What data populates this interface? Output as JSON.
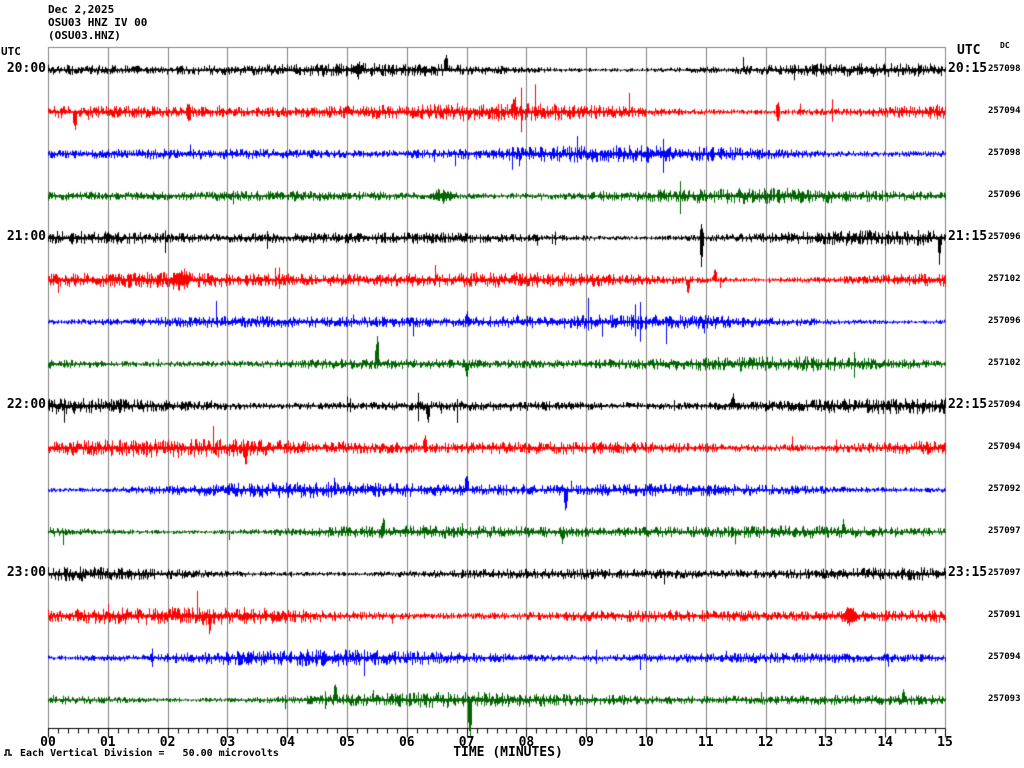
{
  "header": {
    "date": "Dec 2,2025",
    "station": "OSU03 HNZ IV 00",
    "channel": "(OSU03.HNZ)"
  },
  "axis": {
    "left_header": "UTC",
    "right_header": "UTC",
    "dc_header": "DC",
    "xlabel": "TIME (MINUTES)",
    "scale_note": "Each Vertical Division =   50.00 microvolts",
    "tick_labels": [
      "00",
      "01",
      "02",
      "03",
      "04",
      "05",
      "06",
      "07",
      "08",
      "09",
      "10",
      "11",
      "12",
      "13",
      "14",
      "15"
    ],
    "minor_per_major": 6
  },
  "colors": {
    "trace_cycle": [
      "#000000",
      "#ff0000",
      "#0000ff",
      "#006400"
    ],
    "grid": "#808080",
    "axis": "#000000"
  },
  "chart_data": {
    "type": "line",
    "title": "OSU03 HNZ IV 00 helicorder, Dec 2,2025",
    "xlabel": "TIME (MINUTES)",
    "x_range_minutes": [
      0,
      15
    ],
    "minutes_per_row": 15,
    "vertical_division_microvolts": 50.0,
    "rows": [
      {
        "utc_left": "20:00",
        "utc_right": "20:15",
        "dc": "257098",
        "color": 0,
        "amp": 4.2,
        "seed": 11
      },
      {
        "dc": "257094",
        "color": 1,
        "amp": 5.2,
        "seed": 22
      },
      {
        "dc": "257098",
        "color": 2,
        "amp": 4.8,
        "seed": 33
      },
      {
        "dc": "257096",
        "color": 3,
        "amp": 4.3,
        "seed": 44
      },
      {
        "utc_left": "21:00",
        "utc_right": "21:15",
        "dc": "257096",
        "color": 0,
        "amp": 4.3,
        "seed": 55
      },
      {
        "dc": "257102",
        "color": 1,
        "amp": 5.2,
        "seed": 66
      },
      {
        "dc": "257096",
        "color": 2,
        "amp": 4.6,
        "seed": 77
      },
      {
        "dc": "257102",
        "color": 3,
        "amp": 4.3,
        "seed": 88
      },
      {
        "utc_left": "22:00",
        "utc_right": "22:15",
        "dc": "257094",
        "color": 0,
        "amp": 4.4,
        "seed": 99
      },
      {
        "dc": "257094",
        "color": 1,
        "amp": 5.4,
        "seed": 110
      },
      {
        "dc": "257092",
        "color": 2,
        "amp": 4.8,
        "seed": 121
      },
      {
        "dc": "257097",
        "color": 3,
        "amp": 4.3,
        "seed": 132
      },
      {
        "utc_left": "23:00",
        "utc_right": "23:15",
        "dc": "257097",
        "color": 0,
        "amp": 4.0,
        "seed": 143
      },
      {
        "dc": "257091",
        "color": 1,
        "amp": 5.0,
        "seed": 154
      },
      {
        "dc": "257094",
        "color": 2,
        "amp": 4.6,
        "seed": 165
      },
      {
        "dc": "257093",
        "color": 3,
        "amp": 4.4,
        "seed": 176
      }
    ],
    "events": [
      {
        "row": 0,
        "min": 5.15,
        "amp": 10,
        "dir": 0,
        "w": 6
      },
      {
        "row": 0,
        "min": 6.65,
        "amp": 13,
        "dir": 1
      },
      {
        "row": 1,
        "min": 0.45,
        "amp": 16,
        "dir": -1
      },
      {
        "row": 1,
        "min": 2.35,
        "amp": 9,
        "dir": 0
      },
      {
        "row": 1,
        "min": 7.8,
        "amp": 9,
        "dir": 1
      },
      {
        "row": 1,
        "min": 12.2,
        "amp": 11,
        "dir": 0
      },
      {
        "row": 3,
        "min": 6.6,
        "amp": 7,
        "dir": 0,
        "w": 14
      },
      {
        "row": 4,
        "min": 10.92,
        "amp": 26,
        "dir": -1
      },
      {
        "row": 4,
        "min": 10.92,
        "amp": 12,
        "dir": 1
      },
      {
        "row": 4,
        "min": 14.9,
        "amp": 20,
        "dir": -1
      },
      {
        "row": 5,
        "min": 2.2,
        "amp": 10,
        "dir": 0,
        "w": 10
      },
      {
        "row": 5,
        "min": 10.7,
        "amp": 13,
        "dir": -1
      },
      {
        "row": 5,
        "min": 11.15,
        "amp": 11,
        "dir": 1
      },
      {
        "row": 6,
        "min": 7.0,
        "amp": 9,
        "dir": 1
      },
      {
        "row": 7,
        "min": 5.5,
        "amp": 28,
        "dir": 1
      },
      {
        "row": 7,
        "min": 7.0,
        "amp": 11,
        "dir": -1
      },
      {
        "row": 8,
        "min": 6.35,
        "amp": 14,
        "dir": -1
      },
      {
        "row": 8,
        "min": 11.45,
        "amp": 9,
        "dir": 1
      },
      {
        "row": 9,
        "min": 3.3,
        "amp": 17,
        "dir": -1
      },
      {
        "row": 9,
        "min": 6.3,
        "amp": 12,
        "dir": 1
      },
      {
        "row": 10,
        "min": 7.0,
        "amp": 15,
        "dir": 1
      },
      {
        "row": 10,
        "min": 8.65,
        "amp": 19,
        "dir": -1
      },
      {
        "row": 11,
        "min": 5.6,
        "amp": 11,
        "dir": 1
      },
      {
        "row": 11,
        "min": 8.6,
        "amp": 9,
        "dir": -1
      },
      {
        "row": 11,
        "min": 13.3,
        "amp": 9,
        "dir": 1
      },
      {
        "row": 13,
        "min": 2.7,
        "amp": 14,
        "dir": -1
      },
      {
        "row": 13,
        "min": 13.4,
        "amp": 10,
        "dir": 0,
        "w": 8
      },
      {
        "row": 15,
        "min": 4.8,
        "amp": 15,
        "dir": 1
      },
      {
        "row": 15,
        "min": 7.05,
        "amp": 38,
        "dir": -1
      },
      {
        "row": 15,
        "min": 14.3,
        "amp": 10,
        "dir": 1
      }
    ]
  }
}
